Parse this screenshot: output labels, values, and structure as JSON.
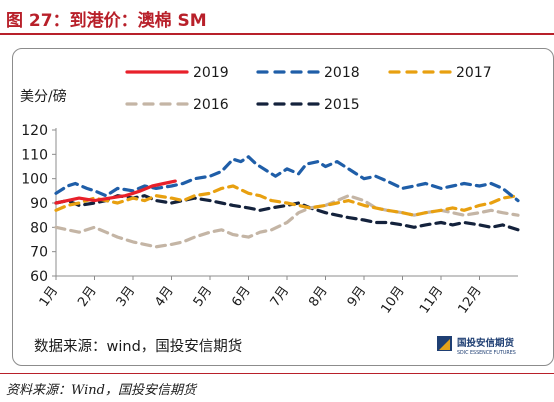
{
  "header": {
    "title": "图 27：到港价：澳棉 SM"
  },
  "footer": {
    "source_note": "资料来源：Wind，国投安信期货"
  },
  "logo": {
    "name_cn": "国投安信期货",
    "name_en": "SDIC ESSENCE FUTURES",
    "color": "#1f3f73",
    "accent": "#e3a21a"
  },
  "chart_data": {
    "type": "line",
    "ylabel": "美分/磅",
    "ylim": [
      60,
      120
    ],
    "yticks": [
      60,
      70,
      80,
      90,
      100,
      110,
      120
    ],
    "xlim": [
      1,
      13
    ],
    "xticks": [
      1,
      2,
      3,
      4,
      5,
      6,
      7,
      8,
      9,
      10,
      11,
      12
    ],
    "xtick_labels": [
      "1月",
      "2月",
      "3月",
      "4月",
      "5月",
      "6月",
      "7月",
      "8月",
      "9月",
      "10月",
      "11月",
      "12月"
    ],
    "grid": false,
    "legend_position": "top",
    "source_text": "数据来源：wind，国投安信期货",
    "series": [
      {
        "name": "2019",
        "color": "#e8202a",
        "style": "solid",
        "x": [
          1.0,
          1.3,
          1.6,
          2.0,
          2.4,
          2.8,
          3.0,
          3.2,
          3.5,
          3.8,
          4.1
        ],
        "y": [
          90,
          91,
          92,
          91,
          92,
          93,
          94,
          95,
          97,
          98,
          99
        ]
      },
      {
        "name": "2018",
        "color": "#1f5ea8",
        "style": "dashed",
        "x": [
          1.0,
          1.3,
          1.5,
          1.8,
          2.0,
          2.3,
          2.6,
          3.0,
          3.3,
          3.6,
          4.0,
          4.3,
          4.6,
          5.0,
          5.3,
          5.6,
          5.8,
          6.0,
          6.2,
          6.5,
          6.7,
          7.0,
          7.3,
          7.5,
          7.8,
          8.0,
          8.3,
          8.6,
          9.0,
          9.3,
          9.6,
          10.0,
          10.3,
          10.6,
          11.0,
          11.3,
          11.6,
          12.0,
          12.3,
          12.6,
          13.0
        ],
        "y": [
          94,
          97,
          98,
          96,
          95,
          93,
          96,
          95,
          97,
          96,
          97,
          98,
          100,
          101,
          103,
          108,
          107,
          109,
          106,
          103,
          101,
          104,
          102,
          106,
          107,
          105,
          107,
          104,
          100,
          101,
          99,
          96,
          97,
          98,
          96,
          97,
          98,
          97,
          98,
          96,
          91
        ]
      },
      {
        "name": "2017",
        "color": "#e8a010",
        "style": "dashed",
        "x": [
          1.0,
          1.3,
          1.6,
          2.0,
          2.3,
          2.6,
          3.0,
          3.3,
          3.6,
          4.0,
          4.3,
          4.6,
          5.0,
          5.3,
          5.6,
          6.0,
          6.3,
          6.6,
          7.0,
          7.3,
          7.6,
          8.0,
          8.3,
          8.6,
          9.0,
          9.3,
          9.6,
          10.0,
          10.3,
          10.6,
          11.0,
          11.3,
          11.6,
          12.0,
          12.3,
          12.6,
          13.0
        ],
        "y": [
          87,
          89,
          90,
          92,
          91,
          90,
          92,
          91,
          93,
          92,
          91,
          93,
          94,
          96,
          97,
          94,
          93,
          91,
          90,
          89,
          88,
          89,
          90,
          91,
          89,
          88,
          87,
          86,
          85,
          86,
          87,
          88,
          87,
          89,
          90,
          92,
          93
        ]
      },
      {
        "name": "2016",
        "color": "#c4b5a5",
        "style": "dashed",
        "x": [
          1.0,
          1.3,
          1.6,
          2.0,
          2.3,
          2.6,
          3.0,
          3.3,
          3.6,
          4.0,
          4.3,
          4.6,
          5.0,
          5.3,
          5.6,
          6.0,
          6.3,
          6.6,
          7.0,
          7.3,
          7.6,
          8.0,
          8.3,
          8.6,
          9.0,
          9.3,
          9.6,
          10.0,
          10.3,
          10.6,
          11.0,
          11.3,
          11.6,
          12.0,
          12.3,
          12.6,
          13.0
        ],
        "y": [
          80,
          79,
          78,
          80,
          78,
          76,
          74,
          73,
          72,
          73,
          74,
          76,
          78,
          79,
          77,
          76,
          78,
          79,
          82,
          86,
          88,
          89,
          91,
          93,
          91,
          88,
          87,
          86,
          85,
          86,
          87,
          86,
          85,
          86,
          87,
          86,
          85
        ]
      },
      {
        "name": "2015",
        "color": "#14223c",
        "style": "dashed",
        "x": [
          1.0,
          1.3,
          1.6,
          2.0,
          2.3,
          2.6,
          3.0,
          3.3,
          3.6,
          4.0,
          4.3,
          4.6,
          5.0,
          5.3,
          5.6,
          6.0,
          6.3,
          6.6,
          7.0,
          7.3,
          7.6,
          8.0,
          8.3,
          8.6,
          9.0,
          9.3,
          9.6,
          10.0,
          10.3,
          10.6,
          11.0,
          11.3,
          11.6,
          12.0,
          12.3,
          12.6,
          13.0
        ],
        "y": [
          90,
          91,
          89,
          90,
          91,
          93,
          92,
          93,
          91,
          90,
          91,
          92,
          91,
          90,
          89,
          88,
          87,
          88,
          89,
          90,
          88,
          86,
          85,
          84,
          83,
          82,
          82,
          81,
          80,
          81,
          82,
          81,
          82,
          81,
          80,
          81,
          79
        ]
      }
    ]
  }
}
